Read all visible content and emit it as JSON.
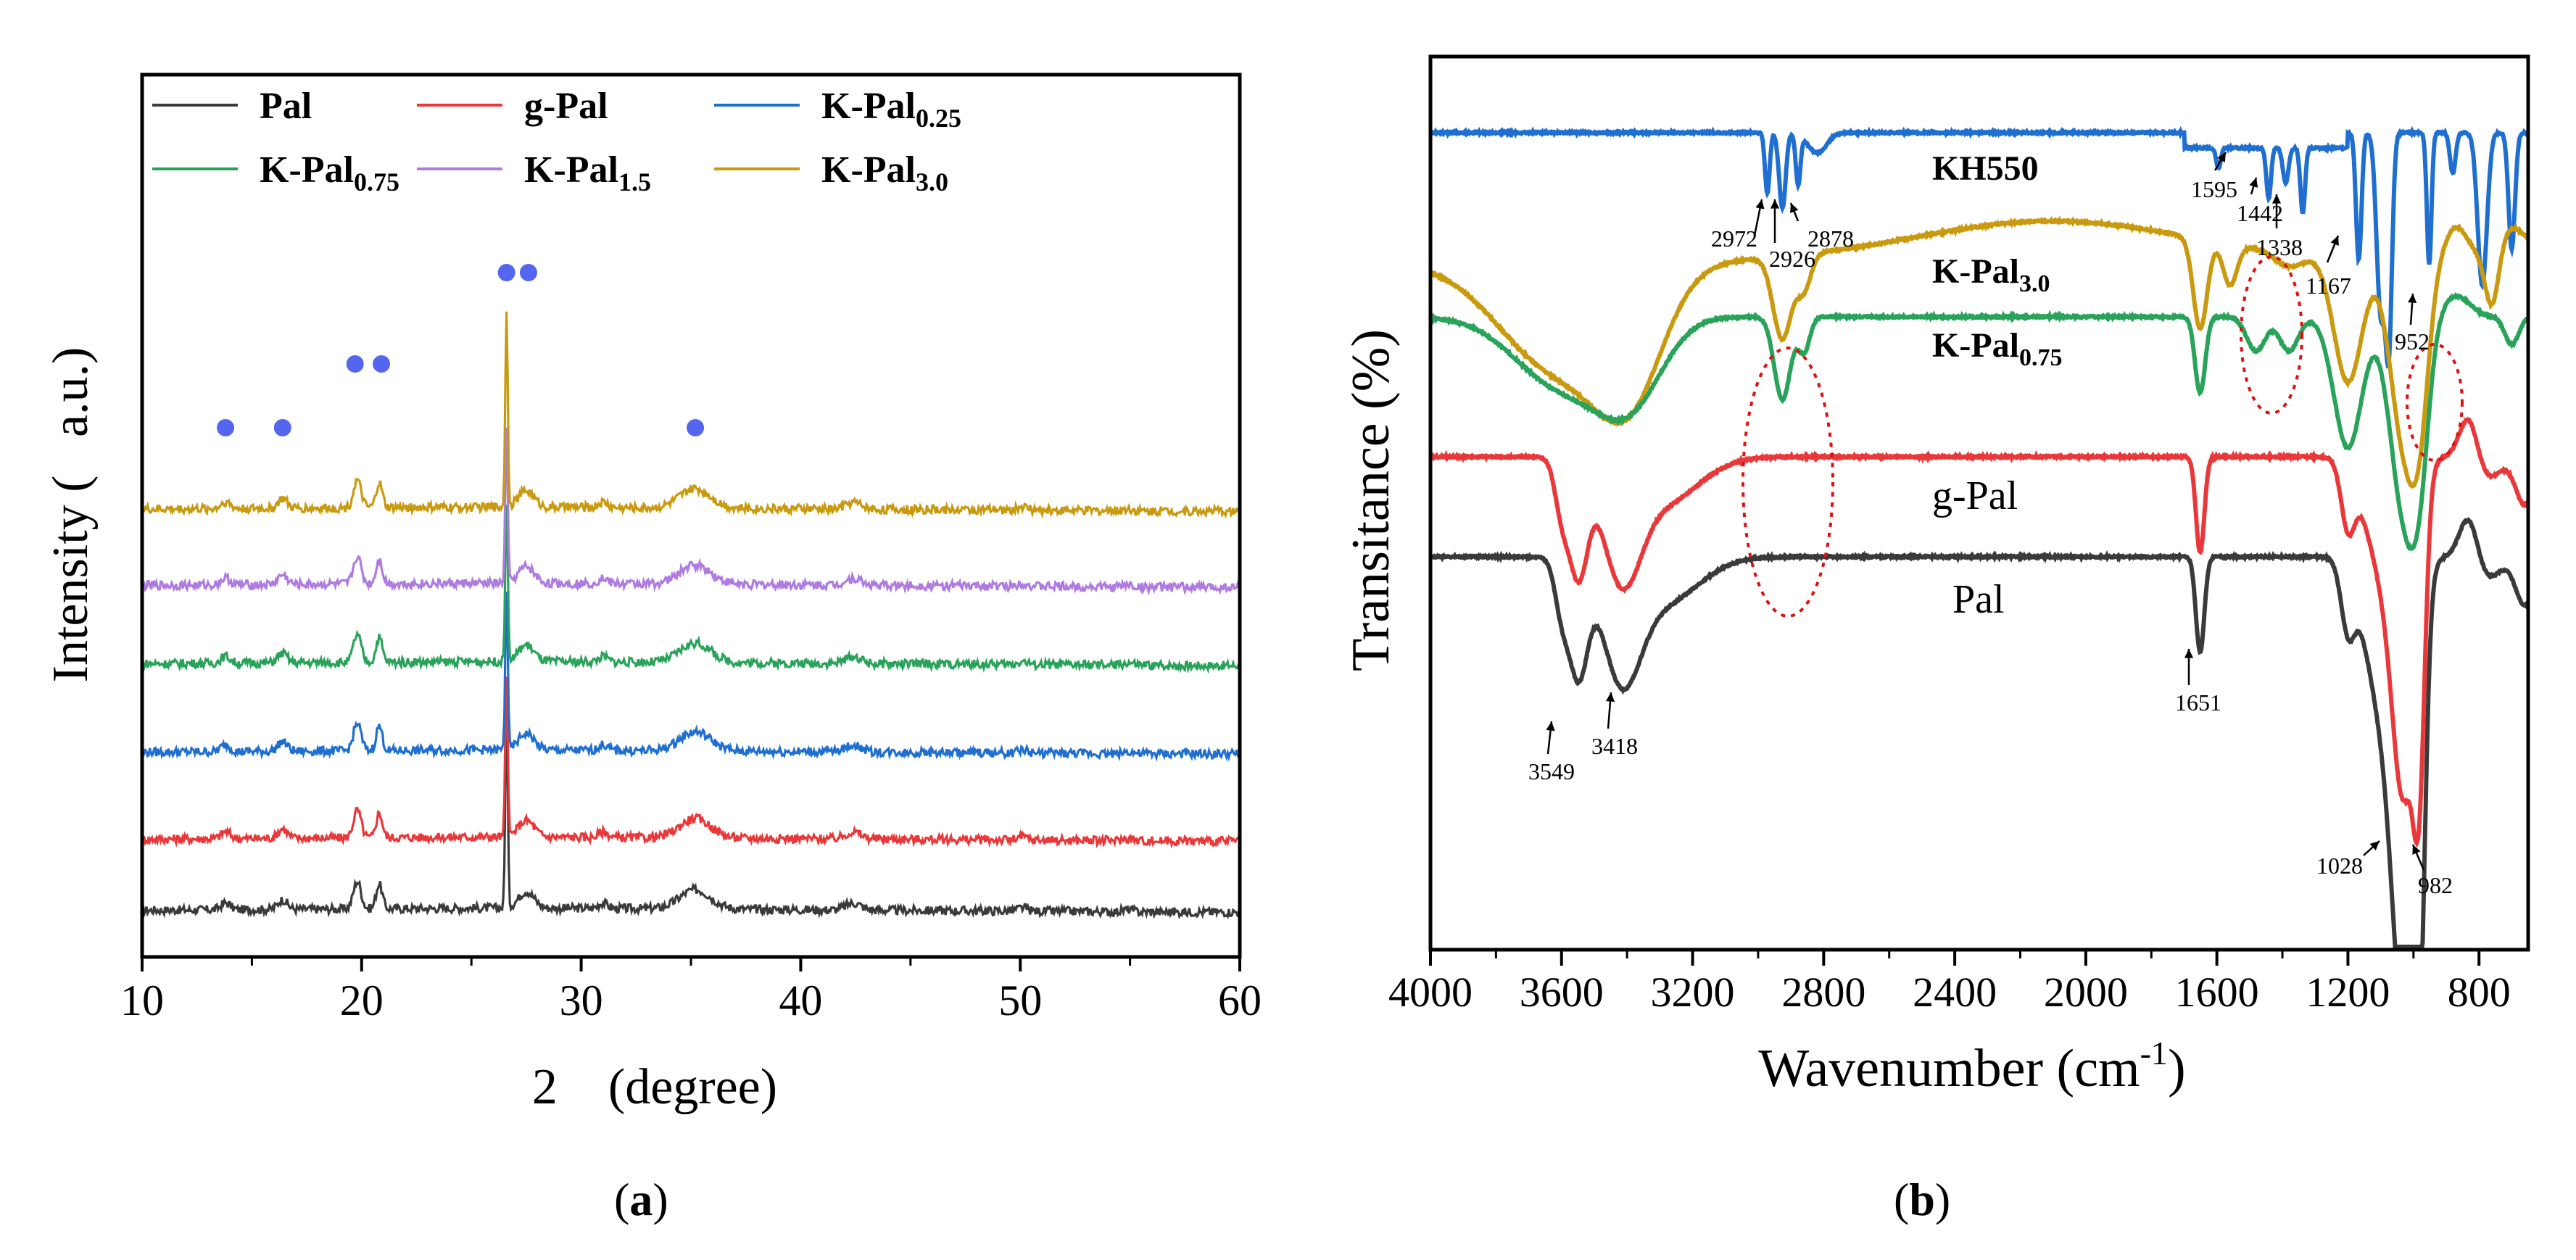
{
  "colors": {
    "Pal": "#3a3a3a",
    "g-Pal": "#e8383a",
    "K-Pal0.25": "#1f6fd0",
    "K-Pal0.75": "#2aa35a",
    "K-Pal1.5": "#b07be0",
    "K-Pal3.0": "#c99a10",
    "KH550": "#1f6fd0",
    "marker": "#5566ee",
    "ellipse": "#dd1111"
  },
  "panels": {
    "a": {
      "label_open": "(",
      "label_letter": "a",
      "label_close": ")"
    },
    "b": {
      "label_open": "(",
      "label_letter": "b",
      "label_close": ")"
    }
  },
  "chart_data": [
    {
      "type": "line",
      "title": "",
      "xlabel": "2    (degree)",
      "ylabel": "Intensity (   a.u.)",
      "xlim": [
        10,
        60
      ],
      "xticks": [
        "10",
        "20",
        "30",
        "40",
        "50",
        "60"
      ],
      "yticks": [],
      "legend_position": "top",
      "legend": [
        {
          "base": "Pal",
          "sub": ""
        },
        {
          "base": "g-Pal",
          "sub": ""
        },
        {
          "base": "K-Pal",
          "sub": "0.25"
        },
        {
          "base": "K-Pal",
          "sub": "0.75"
        },
        {
          "base": "K-Pal",
          "sub": "1.5"
        },
        {
          "base": "K-Pal",
          "sub": "3.0"
        }
      ],
      "series_note": "XRD patterns, offset vertically in order Pal (bottom) to K-Pal3.0 (top)",
      "series": [
        {
          "name": "Pal",
          "offset": 0
        },
        {
          "name": "g-Pal",
          "offset": 1
        },
        {
          "name": "K-Pal0.25",
          "offset": 2
        },
        {
          "name": "K-Pal0.75",
          "offset": 3
        },
        {
          "name": "K-Pal1.5",
          "offset": 4
        },
        {
          "name": "K-Pal3.0",
          "offset": 5
        }
      ],
      "peaks_2theta": [
        {
          "x": 13.8,
          "h": 0.25,
          "w": 0.3
        },
        {
          "x": 16.4,
          "h": 0.35,
          "w": 0.3
        },
        {
          "x": 19.8,
          "h": 1.0,
          "w": 0.25
        },
        {
          "x": 20.8,
          "h": 0.9,
          "w": 0.2
        },
        {
          "x": 26.6,
          "h": 7.0,
          "w": 0.08
        },
        {
          "x": 27.5,
          "h": 0.6,
          "w": 0.5
        },
        {
          "x": 31.0,
          "h": 0.2,
          "w": 0.3
        },
        {
          "x": 35.2,
          "h": 0.7,
          "w": 1.0
        },
        {
          "x": 42.4,
          "h": 0.25,
          "w": 0.5
        },
        {
          "x": 50.1,
          "h": 0.12,
          "w": 0.3
        },
        {
          "x": 54.9,
          "h": 0.08,
          "w": 0.3
        }
      ],
      "markers_2theta": [
        {
          "x": 13.8,
          "level": 1
        },
        {
          "x": 16.4,
          "level": 1
        },
        {
          "x": 19.7,
          "level": 2
        },
        {
          "x": 20.9,
          "level": 2
        },
        {
          "x": 26.6,
          "level": 3
        },
        {
          "x": 27.6,
          "level": 3
        },
        {
          "x": 35.2,
          "level": 1
        }
      ]
    },
    {
      "type": "line",
      "title": "",
      "xlabel": "Wavenumber (cm",
      "xlabel_sup": "-1",
      "xlabel_close": ")",
      "ylabel": "Transitance (%)",
      "xlim": [
        4000,
        650
      ],
      "xticks": [
        "4000",
        "3600",
        "3200",
        "2800",
        "2400",
        "2000",
        "1600",
        "1200",
        "800"
      ],
      "series": [
        {
          "name": "KH550",
          "label_base": "KH550",
          "label_sub": ""
        },
        {
          "name": "K-Pal3.0",
          "label_base": "K-Pal",
          "label_sub": "3.0"
        },
        {
          "name": "K-Pal0.75",
          "label_base": "K-Pal",
          "label_sub": "0.75"
        },
        {
          "name": "g-Pal",
          "label_base": "g-Pal",
          "label_sub": ""
        },
        {
          "name": "Pal",
          "label_base": "Pal",
          "label_sub": ""
        }
      ],
      "annotations": [
        "2972",
        "2926",
        "2878",
        "1595",
        "1442",
        "1338",
        "1167",
        "952",
        "1651",
        "3549",
        "3418",
        "1028",
        "982"
      ]
    }
  ]
}
